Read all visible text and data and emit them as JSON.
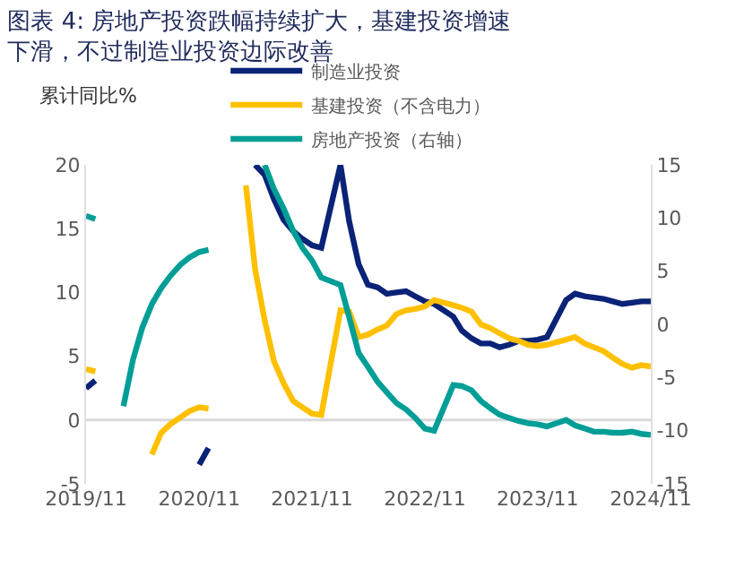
{
  "chart_data": {
    "type": "line",
    "title": "图表 4: 房地产投资跌幅持续扩大，基建投资增速下滑，不过制造业投资边际改善",
    "ylabel": "累计同比%",
    "x": [
      "2019-11",
      "2019-12",
      "2020-02",
      "2020-03",
      "2020-04",
      "2020-05",
      "2020-06",
      "2020-07",
      "2020-08",
      "2020-09",
      "2020-10",
      "2020-11",
      "2020-12",
      "2021-02",
      "2021-03",
      "2021-04",
      "2021-05",
      "2021-06",
      "2021-07",
      "2021-08",
      "2021-09",
      "2021-10",
      "2021-11",
      "2021-12",
      "2022-02",
      "2022-03",
      "2022-04",
      "2022-05",
      "2022-06",
      "2022-07",
      "2022-08",
      "2022-09",
      "2022-10",
      "2022-11",
      "2022-12",
      "2023-02",
      "2023-03",
      "2023-04",
      "2023-05",
      "2023-06",
      "2023-07",
      "2023-08",
      "2023-09",
      "2023-10",
      "2023-11",
      "2023-12",
      "2024-02",
      "2024-03",
      "2024-04",
      "2024-05",
      "2024-06",
      "2024-07",
      "2024-08",
      "2024-09",
      "2024-10",
      "2024-11"
    ],
    "series": [
      {
        "name": "制造业投资",
        "color": "#0a2377",
        "values": [
          2.5,
          3.1,
          null,
          null,
          null,
          null,
          null,
          null,
          null,
          null,
          null,
          -3.5,
          -2.2,
          null,
          null,
          null,
          20.0,
          19.2,
          17.3,
          15.7,
          14.8,
          14.2,
          13.7,
          13.5,
          20.0,
          15.6,
          12.2,
          10.6,
          10.4,
          9.9,
          10.0,
          10.1,
          9.7,
          9.3,
          9.1,
          8.1,
          7.0,
          6.4,
          6.0,
          6.0,
          5.7,
          5.9,
          6.2,
          6.2,
          6.3,
          6.5,
          9.4,
          9.9,
          9.7,
          9.6,
          9.5,
          9.3,
          9.1,
          9.2,
          9.3,
          9.3
        ]
      },
      {
        "name": "基建投资（不含电力）",
        "color": "#ffc000",
        "values": [
          4.0,
          3.8,
          null,
          null,
          null,
          null,
          -2.7,
          -1.0,
          -0.3,
          0.2,
          0.7,
          1.0,
          0.9,
          null,
          null,
          18.4,
          11.8,
          7.8,
          4.6,
          2.9,
          1.5,
          1.0,
          0.5,
          0.4,
          8.6,
          8.5,
          6.5,
          6.7,
          7.1,
          7.4,
          8.3,
          8.6,
          8.7,
          8.9,
          9.4,
          9.0,
          8.8,
          8.5,
          7.5,
          7.2,
          6.8,
          6.4,
          6.2,
          5.9,
          5.8,
          5.9,
          6.3,
          6.5,
          6.0,
          5.7,
          5.4,
          4.9,
          4.4,
          4.1,
          4.3,
          4.2
        ]
      },
      {
        "name": "房地产投资（右轴）",
        "color": "#009e96",
        "axis": "y2",
        "values": [
          10.2,
          9.9,
          null,
          -7.7,
          -3.3,
          -0.3,
          1.9,
          3.4,
          4.6,
          5.6,
          6.3,
          6.8,
          7.0,
          null,
          null,
          null,
          null,
          15.0,
          12.7,
          10.9,
          8.8,
          7.2,
          6.0,
          4.4,
          3.7,
          0.7,
          -2.7,
          -4.0,
          -5.4,
          -6.4,
          -7.4,
          -8.0,
          -8.8,
          -9.8,
          -10.0,
          -5.7,
          -5.8,
          -6.2,
          -7.2,
          -7.9,
          -8.5,
          -8.8,
          -9.1,
          -9.3,
          -9.4,
          -9.6,
          -9.0,
          -9.5,
          -9.8,
          -10.1,
          -10.1,
          -10.2,
          -10.2,
          -10.1,
          -10.3,
          -10.4
        ]
      }
    ],
    "xlim": [
      "2019-11",
      "2024-11"
    ],
    "xticks": [
      {
        "value": "2019-11",
        "label": "2019/11"
      },
      {
        "value": "2020-11",
        "label": "2020/11"
      },
      {
        "value": "2021-11",
        "label": "2021/11"
      },
      {
        "value": "2022-11",
        "label": "2022/11"
      },
      {
        "value": "2023-11",
        "label": "2023/11"
      },
      {
        "value": "2024-11",
        "label": "2024/11"
      }
    ],
    "ylim": [
      -5,
      20
    ],
    "yticks": [
      -5,
      0,
      5,
      10,
      15,
      20
    ],
    "y2lim": [
      -15,
      15
    ],
    "y2ticks": [
      -15,
      -10,
      -5,
      0,
      5,
      10,
      15
    ],
    "ref_lines": [
      {
        "axis": "y",
        "value": 0,
        "color": "#d9d9d9"
      }
    ],
    "grid": false,
    "legend": "top",
    "marker": "none",
    "line_style": "solid"
  }
}
